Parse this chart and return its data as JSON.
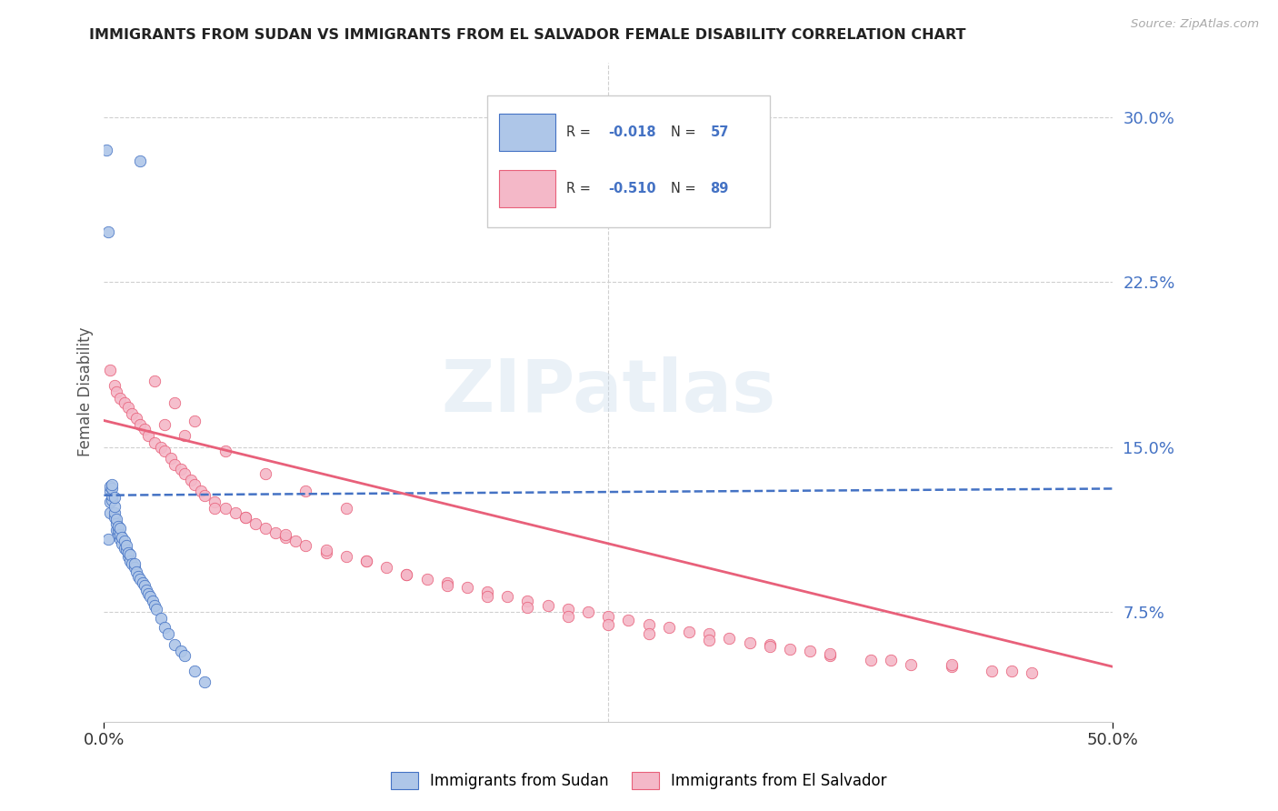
{
  "title": "IMMIGRANTS FROM SUDAN VS IMMIGRANTS FROM EL SALVADOR FEMALE DISABILITY CORRELATION CHART",
  "source": "Source: ZipAtlas.com",
  "ylabel": "Female Disability",
  "right_yticks": [
    "30.0%",
    "22.5%",
    "15.0%",
    "7.5%"
  ],
  "right_ytick_vals": [
    0.3,
    0.225,
    0.15,
    0.075
  ],
  "xlim": [
    0.0,
    0.5
  ],
  "ylim": [
    0.025,
    0.325
  ],
  "sudan_color": "#aec6e8",
  "salvador_color": "#f4b8c8",
  "sudan_line_color": "#4472c4",
  "salvador_line_color": "#e8607a",
  "background_color": "#ffffff",
  "grid_color": "#d0d0d0",
  "watermark": "ZIPatlas",
  "sudan_x": [
    0.001,
    0.002,
    0.002,
    0.003,
    0.003,
    0.003,
    0.003,
    0.004,
    0.004,
    0.004,
    0.004,
    0.005,
    0.005,
    0.005,
    0.005,
    0.006,
    0.006,
    0.006,
    0.007,
    0.007,
    0.007,
    0.008,
    0.008,
    0.008,
    0.009,
    0.009,
    0.01,
    0.01,
    0.011,
    0.011,
    0.012,
    0.012,
    0.013,
    0.013,
    0.014,
    0.015,
    0.015,
    0.016,
    0.017,
    0.018,
    0.019,
    0.02,
    0.021,
    0.022,
    0.023,
    0.024,
    0.025,
    0.026,
    0.028,
    0.03,
    0.032,
    0.035,
    0.038,
    0.04,
    0.045,
    0.05,
    0.018
  ],
  "sudan_y": [
    0.285,
    0.248,
    0.108,
    0.12,
    0.125,
    0.13,
    0.132,
    0.126,
    0.128,
    0.131,
    0.133,
    0.118,
    0.12,
    0.123,
    0.127,
    0.112,
    0.115,
    0.117,
    0.11,
    0.112,
    0.114,
    0.108,
    0.11,
    0.113,
    0.106,
    0.109,
    0.104,
    0.107,
    0.103,
    0.105,
    0.1,
    0.102,
    0.098,
    0.101,
    0.097,
    0.095,
    0.097,
    0.093,
    0.091,
    0.09,
    0.088,
    0.087,
    0.085,
    0.083,
    0.082,
    0.08,
    0.078,
    0.076,
    0.072,
    0.068,
    0.065,
    0.06,
    0.057,
    0.055,
    0.048,
    0.043,
    0.28
  ],
  "salvador_x": [
    0.003,
    0.005,
    0.006,
    0.008,
    0.01,
    0.012,
    0.014,
    0.016,
    0.018,
    0.02,
    0.022,
    0.025,
    0.028,
    0.03,
    0.033,
    0.035,
    0.038,
    0.04,
    0.043,
    0.045,
    0.048,
    0.05,
    0.055,
    0.06,
    0.065,
    0.07,
    0.075,
    0.08,
    0.085,
    0.09,
    0.095,
    0.1,
    0.11,
    0.12,
    0.13,
    0.14,
    0.15,
    0.16,
    0.17,
    0.18,
    0.19,
    0.2,
    0.21,
    0.22,
    0.23,
    0.24,
    0.25,
    0.26,
    0.27,
    0.28,
    0.29,
    0.3,
    0.31,
    0.32,
    0.33,
    0.34,
    0.35,
    0.36,
    0.38,
    0.4,
    0.42,
    0.44,
    0.46,
    0.025,
    0.035,
    0.045,
    0.055,
    0.07,
    0.09,
    0.11,
    0.13,
    0.15,
    0.17,
    0.19,
    0.21,
    0.23,
    0.25,
    0.27,
    0.3,
    0.33,
    0.36,
    0.39,
    0.42,
    0.45,
    0.03,
    0.04,
    0.06,
    0.08,
    0.1,
    0.12
  ],
  "salvador_y": [
    0.185,
    0.178,
    0.175,
    0.172,
    0.17,
    0.168,
    0.165,
    0.163,
    0.16,
    0.158,
    0.155,
    0.152,
    0.15,
    0.148,
    0.145,
    0.142,
    0.14,
    0.138,
    0.135,
    0.133,
    0.13,
    0.128,
    0.125,
    0.122,
    0.12,
    0.118,
    0.115,
    0.113,
    0.111,
    0.109,
    0.107,
    0.105,
    0.102,
    0.1,
    0.098,
    0.095,
    0.092,
    0.09,
    0.088,
    0.086,
    0.084,
    0.082,
    0.08,
    0.078,
    0.076,
    0.075,
    0.073,
    0.071,
    0.069,
    0.068,
    0.066,
    0.065,
    0.063,
    0.061,
    0.06,
    0.058,
    0.057,
    0.055,
    0.053,
    0.051,
    0.05,
    0.048,
    0.047,
    0.18,
    0.17,
    0.162,
    0.122,
    0.118,
    0.11,
    0.103,
    0.098,
    0.092,
    0.087,
    0.082,
    0.077,
    0.073,
    0.069,
    0.065,
    0.062,
    0.059,
    0.056,
    0.053,
    0.051,
    0.048,
    0.16,
    0.155,
    0.148,
    0.138,
    0.13,
    0.122
  ]
}
